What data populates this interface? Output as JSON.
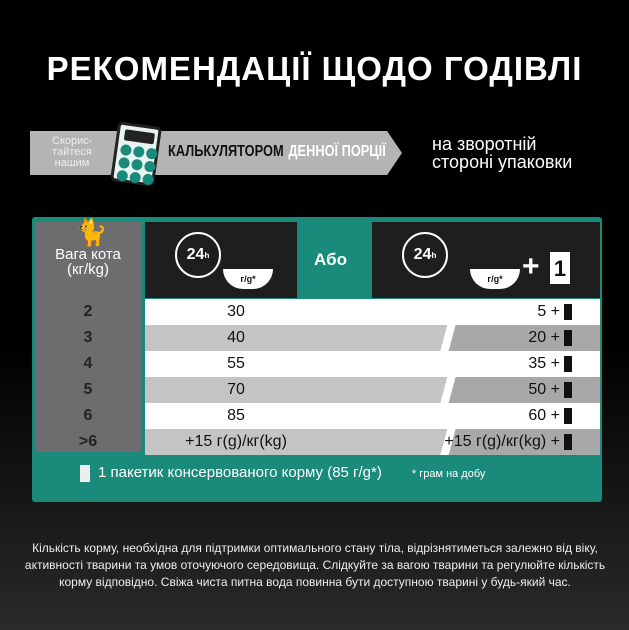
{
  "title": "РЕКОМЕНДАЦІЇ ЩОДО ГОДІВЛІ",
  "banner": {
    "small_lines": [
      "Скорис-",
      "тайтеся",
      "нашим"
    ],
    "calc_dark": "КАЛЬКУЛЯТОРОМ",
    "calc_light": "ДЕННОЇ ПОРЦІЇ",
    "back_lines": [
      "на зворотній",
      "стороні упаковки"
    ]
  },
  "table": {
    "weight_header": [
      "Вага кота",
      "(кг/kg)"
    ],
    "or_label": "Або",
    "clock_label": "24",
    "clock_sub": "h",
    "bowl_label": "г/g*",
    "plus": "+",
    "one": "1",
    "rows": [
      {
        "w": "2",
        "a": "30",
        "b": "5 +"
      },
      {
        "w": "3",
        "a": "40",
        "b": "20 +"
      },
      {
        "w": "4",
        "a": "55",
        "b": "35 +"
      },
      {
        "w": "5",
        "a": "70",
        "b": "50 +"
      },
      {
        "w": "6",
        "a": "85",
        "b": "60 +"
      },
      {
        "w": ">6",
        "a": "+15 г(g)/кг(kg)",
        "b": "+15 г(g)/кг(kg) +"
      }
    ],
    "footer": "1 пакетик консервованого корму (85 г/g*)",
    "footnote": "* грам на добу"
  },
  "note": "Кількість корму, необхідна для підтримки оптимального стану тіла, відрізнятиметься залежно від віку, активності тварини та умов оточуючого середовища. Слідкуйте за вагою тварини та регулюйте кількість корму відповідно. Свіжа чиста питна вода повинна бути доступною тварині у будь-який час.",
  "colors": {
    "teal": "#1a8a7a",
    "header": "#1e1e1e",
    "weight_col": "#6d6d70"
  }
}
